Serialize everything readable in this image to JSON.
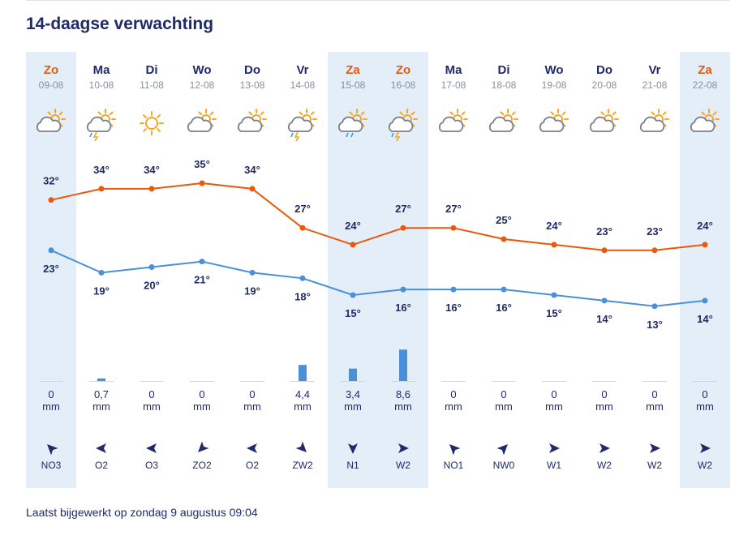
{
  "title": "14-daagse verwachting",
  "updated": "Laatst bijgewerkt op zondag 9 augustus 09:04",
  "colors": {
    "max_line": "#e8590c",
    "min_line": "#4a90d9",
    "weekend_text": "#e8590c",
    "weekday_text": "#1f2a6b",
    "highlight_bg": "#e3eef9",
    "rain_bar": "#4a90d9",
    "sun": "#f5a623",
    "cloud": "#7a7f8c"
  },
  "chart_data": {
    "type": "line",
    "categories": [
      "Zo",
      "Ma",
      "Di",
      "Wo",
      "Do",
      "Vr",
      "Za",
      "Zo",
      "Ma",
      "Di",
      "Wo",
      "Do",
      "Vr",
      "Za"
    ],
    "dates": [
      "09-08",
      "10-08",
      "11-08",
      "12-08",
      "13-08",
      "14-08",
      "15-08",
      "16-08",
      "17-08",
      "18-08",
      "19-08",
      "20-08",
      "21-08",
      "22-08"
    ],
    "weekend": [
      true,
      false,
      false,
      false,
      false,
      false,
      true,
      true,
      false,
      false,
      false,
      false,
      false,
      true
    ],
    "highlighted": [
      true,
      false,
      false,
      false,
      false,
      false,
      true,
      true,
      false,
      false,
      false,
      false,
      false,
      true
    ],
    "icons": [
      "partly-cloudy-icon",
      "thunder-rain-icon",
      "sun-icon",
      "partly-cloudy-icon",
      "partly-cloudy-icon",
      "thunder-rain-icon",
      "cloud-rain-icon",
      "thunder-rain-icon",
      "partly-cloudy-icon",
      "partly-cloudy-icon",
      "cloudy-sun-icon",
      "cloudy-sun-icon",
      "partly-cloudy-icon",
      "partly-cloudy-icon"
    ],
    "series": [
      {
        "name": "max",
        "values": [
          32,
          34,
          34,
          35,
          34,
          27,
          24,
          27,
          27,
          25,
          24,
          23,
          23,
          24
        ],
        "labels": [
          "32°",
          "34°",
          "34°",
          "35°",
          "34°",
          "27°",
          "24°",
          "27°",
          "27°",
          "25°",
          "24°",
          "23°",
          "23°",
          "24°"
        ]
      },
      {
        "name": "min",
        "values": [
          23,
          19,
          20,
          21,
          19,
          18,
          15,
          16,
          16,
          16,
          15,
          14,
          13,
          14
        ],
        "labels": [
          "23°",
          "19°",
          "20°",
          "21°",
          "19°",
          "18°",
          "15°",
          "16°",
          "16°",
          "16°",
          "15°",
          "14°",
          "13°",
          "14°"
        ]
      }
    ],
    "precipitation": {
      "values": [
        0,
        0.7,
        0,
        0,
        0,
        4.4,
        3.4,
        8.6,
        0,
        0,
        0,
        0,
        0,
        0
      ],
      "labels": [
        "0",
        "0,7",
        "0",
        "0",
        "0",
        "4,4",
        "3,4",
        "8,6",
        "0",
        "0",
        "0",
        "0",
        "0",
        "0"
      ],
      "unit": "mm"
    },
    "wind": {
      "labels": [
        "NO3",
        "O2",
        "O3",
        "ZO2",
        "O2",
        "ZW2",
        "N1",
        "W2",
        "NO1",
        "NW0",
        "W1",
        "W2",
        "W2",
        "W2"
      ],
      "arrow_degrees": [
        225,
        180,
        180,
        135,
        180,
        45,
        90,
        0,
        225,
        315,
        0,
        0,
        0,
        0
      ]
    }
  }
}
